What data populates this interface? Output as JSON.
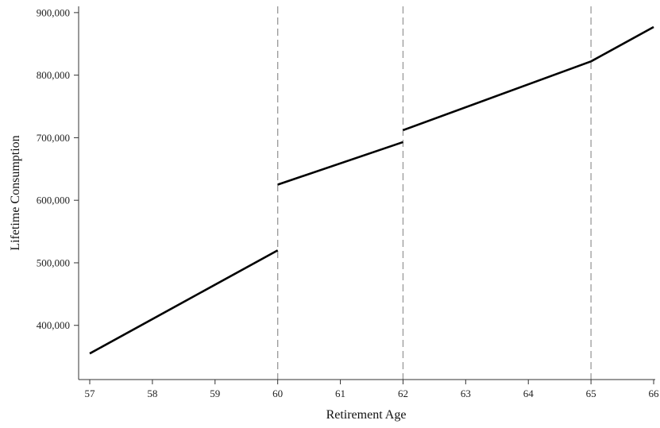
{
  "chart_data": {
    "type": "line",
    "title": "",
    "xlabel": "Retirement Age",
    "ylabel": "Lifetime Consumption",
    "xlim": [
      57,
      66
    ],
    "ylim": [
      340000,
      910000
    ],
    "x_ticks": [
      57,
      58,
      59,
      60,
      61,
      62,
      63,
      64,
      65,
      66
    ],
    "x_tick_labels": [
      "57",
      "58",
      "59",
      "60",
      "61",
      "62",
      "63",
      "64",
      "65",
      "66"
    ],
    "y_ticks": [
      400000,
      500000,
      600000,
      700000,
      800000,
      900000
    ],
    "y_tick_labels": [
      "400,000",
      "500,000",
      "600,000",
      "700,000",
      "800,000",
      "900,000"
    ],
    "vertical_reference_lines": [
      60,
      62,
      65
    ],
    "reference_line_style": "dashed gray",
    "grid": false,
    "legend": "none",
    "line_color": "#000000",
    "reference_line_color": "#999999",
    "segments": [
      {
        "x": [
          57,
          60
        ],
        "y": [
          355000,
          520000
        ]
      },
      {
        "x": [
          60,
          62
        ],
        "y": [
          625000,
          693000
        ]
      },
      {
        "x": [
          62,
          65
        ],
        "y": [
          712000,
          822000
        ]
      },
      {
        "x": [
          65,
          66
        ],
        "y": [
          822000,
          877000
        ]
      }
    ]
  }
}
